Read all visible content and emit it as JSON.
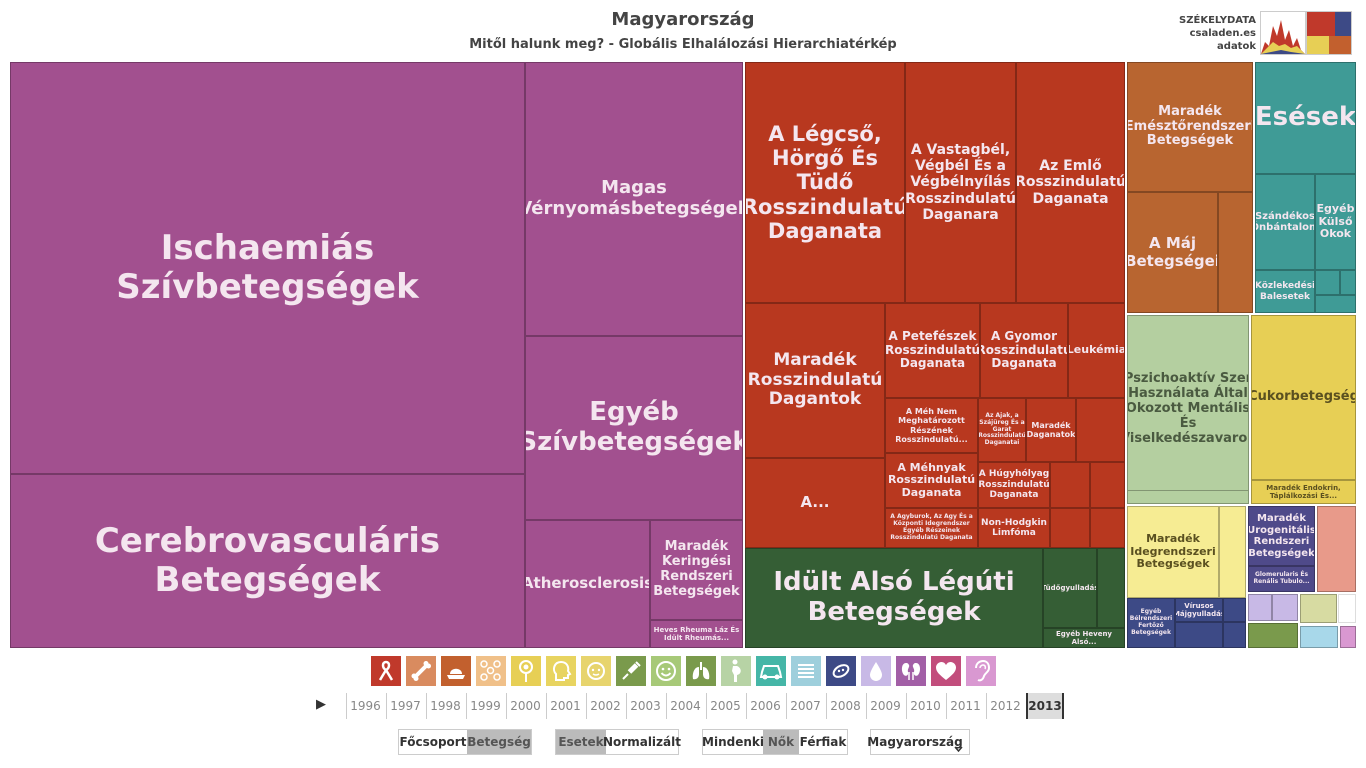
{
  "header": {
    "title": "Magyarország",
    "subtitle": "Mitől halunk meg? - Globális Elhalálozási Hierarchiatérkép",
    "brand_line1": "SZÉKELYDATA",
    "brand_line2": "csaladen.es",
    "brand_line3": "adatok"
  },
  "treemap": {
    "c1": "Ischaemiás Szívbetegségek",
    "c2": "Cerebrovasculáris Betegségek",
    "c3": "Magas Vérnyomásbetegségek",
    "c4": "Egyéb Szívbetegségek",
    "c5": "Atherosclerosis",
    "c6": "Maradék Keringési Rendszeri Betegségek",
    "c7": "Heves Rheuma Láz És Idült Rheumás...",
    "c8": "A Légcső, Hörgő És Tüdő Rosszindulatú Daganata",
    "c9": "A Vastagbél, Végbél És a Végbélnyílás Rosszindulatú Daganara",
    "c10": "Az Emlő Rosszindulatú Daganata",
    "c11": "Maradék Rosszindulatú Dagantok",
    "c12": "A Petefészek Rosszindulatú Daganata",
    "c13": "A Gyomor Rosszindulatú Daganata",
    "c14": "Leukémia",
    "c15": "A Méh Nem Meghatározott Részének Rosszindulatú...",
    "c16": "Az Ajak, a Szájüreg És a Garat Rosszindulatú Daganatai",
    "c17": "Maradék Daganatok",
    "c18": "A Méhnyak Rosszindulatú Daganata",
    "c19": "A Húgyhólyag Rosszindulatú Daganata",
    "c20": "A...",
    "c21": "A Agyburok, Az Agy És a Központi Idegrendszer Egyéb Részeinek Rosszindulatú Daganata",
    "c22": "Non-Hodgkin Limfóma",
    "c23": "Idült Alsó Légúti Betegségek",
    "c24": "Tüdőgyulladás",
    "c25": "Egyéb Heveny Alsó...",
    "c26": "Maradék Emésztőrendszeri Betegségek",
    "c27": "A Máj Betegségei",
    "c28": "Esések",
    "c29": "Szándékos Önbántalom",
    "c30": "Egyéb Külső Okok",
    "c31": "Közlekedési Balesetek",
    "c32": "Pszichoaktív Szer Használata Által Okozott Mentális És Viselkedészavarok",
    "c33": "Cukorbetegség",
    "c34": "Maradék Endokrin, Táplálkozási És...",
    "c35": "Maradék Idegrendszeri Betegségek",
    "c36": "Maradék Urogenitális Rendszeri Betegségek",
    "c37": "Glomerularis És Renális Tubulo...",
    "c38": "Egyéb Bélrendszeri Fertőző Betegségek",
    "c39": "Vírusos Májgyulladás"
  },
  "icons": [
    "ribbon-icon",
    "bone-icon",
    "food-icon",
    "pattern-icon",
    "lollipop-icon",
    "head-icon",
    "baby-icon",
    "syringe-icon",
    "smile-icon",
    "lungs-icon",
    "pregnant-icon",
    "car-icon",
    "list-icon",
    "bacteria-icon",
    "drop-icon",
    "kidney-icon",
    "heart-icon",
    "ear-icon"
  ],
  "icon_colors": [
    "#c0392b",
    "#d98b5f",
    "#c2602e",
    "#f0c089",
    "#e7cf55",
    "#e8d460",
    "#e7d46d",
    "#7a9a4c",
    "#a7c978",
    "#7a9a4c",
    "#b7d3a5",
    "#45b6a7",
    "#9ecfdc",
    "#3d4a86",
    "#c8b9e6",
    "#a25fa6",
    "#c24d7c",
    "#d998d1"
  ],
  "years": {
    "play": "▶",
    "list": [
      "1996",
      "1997",
      "1998",
      "1999",
      "2000",
      "2001",
      "2002",
      "2003",
      "2004",
      "2005",
      "2006",
      "2007",
      "2008",
      "2009",
      "2010",
      "2011",
      "2012",
      "2013"
    ],
    "selected": "2013"
  },
  "toggles": {
    "focsoport": "Főcsoport",
    "betegseg": "Betegség",
    "esetek": "Esetek",
    "normalizalt": "Normalizált",
    "mindenki": "Mindenki",
    "nok": "Nők",
    "ferfiak": "Férfiak",
    "country": "Magyarország"
  }
}
